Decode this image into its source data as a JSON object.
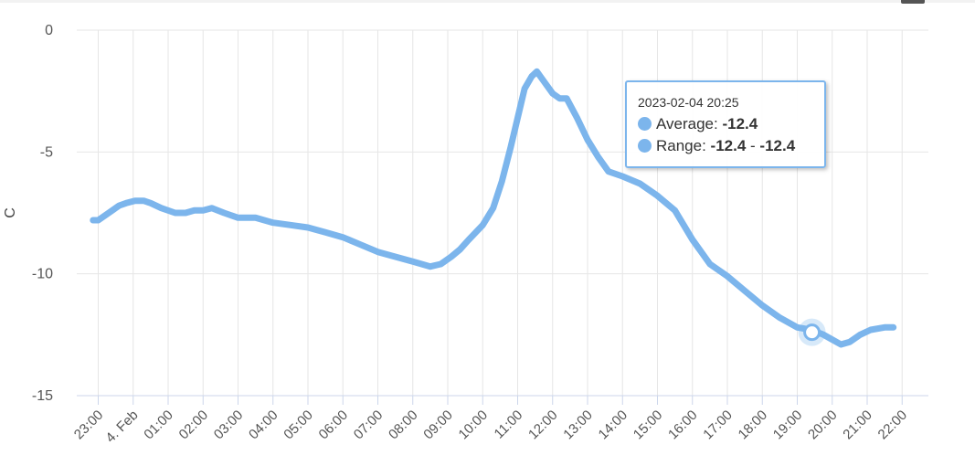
{
  "chart_data": {
    "type": "line",
    "ylabel": "C",
    "ylim": [
      -15,
      0
    ],
    "y_ticks": [
      "0",
      "-5",
      "-10",
      "-15"
    ],
    "x_ticks": [
      "23:00",
      "4. Feb",
      "01:00",
      "02:00",
      "03:00",
      "04:00",
      "05:00",
      "06:00",
      "07:00",
      "08:00",
      "09:00",
      "10:00",
      "11:00",
      "12:00",
      "13:00",
      "14:00",
      "15:00",
      "16:00",
      "17:00",
      "18:00",
      "19:00",
      "20:00",
      "21:00",
      "22:00"
    ],
    "x_unit": "hours from 2023-02-03 23:00",
    "grid": true,
    "series": [
      {
        "color": "#7cb5ec",
        "points": [
          [
            -0.15,
            -7.8
          ],
          [
            0.0,
            -7.8
          ],
          [
            0.3,
            -7.5
          ],
          [
            0.6,
            -7.2
          ],
          [
            0.8,
            -7.1
          ],
          [
            1.05,
            -7.0
          ],
          [
            1.3,
            -7.0
          ],
          [
            1.5,
            -7.1
          ],
          [
            1.8,
            -7.3
          ],
          [
            2.2,
            -7.5
          ],
          [
            2.5,
            -7.5
          ],
          [
            2.75,
            -7.4
          ],
          [
            3.0,
            -7.4
          ],
          [
            3.25,
            -7.3
          ],
          [
            3.6,
            -7.5
          ],
          [
            4.0,
            -7.7
          ],
          [
            4.5,
            -7.7
          ],
          [
            5.0,
            -7.9
          ],
          [
            5.5,
            -8.0
          ],
          [
            6.0,
            -8.1
          ],
          [
            6.5,
            -8.3
          ],
          [
            7.0,
            -8.5
          ],
          [
            7.5,
            -8.8
          ],
          [
            8.0,
            -9.1
          ],
          [
            8.5,
            -9.3
          ],
          [
            9.0,
            -9.5
          ],
          [
            9.5,
            -9.7
          ],
          [
            9.8,
            -9.6
          ],
          [
            10.1,
            -9.3
          ],
          [
            10.35,
            -9.0
          ],
          [
            10.6,
            -8.6
          ],
          [
            11.0,
            -8.0
          ],
          [
            11.3,
            -7.3
          ],
          [
            11.55,
            -6.2
          ],
          [
            11.8,
            -4.8
          ],
          [
            12.0,
            -3.6
          ],
          [
            12.2,
            -2.4
          ],
          [
            12.4,
            -1.9
          ],
          [
            12.55,
            -1.7
          ],
          [
            12.75,
            -2.1
          ],
          [
            13.0,
            -2.6
          ],
          [
            13.2,
            -2.8
          ],
          [
            13.4,
            -2.8
          ],
          [
            13.7,
            -3.6
          ],
          [
            14.0,
            -4.5
          ],
          [
            14.3,
            -5.2
          ],
          [
            14.6,
            -5.8
          ],
          [
            15.0,
            -6.0
          ],
          [
            15.5,
            -6.3
          ],
          [
            16.0,
            -6.8
          ],
          [
            16.5,
            -7.4
          ],
          [
            17.0,
            -8.6
          ],
          [
            17.5,
            -9.6
          ],
          [
            18.0,
            -10.1
          ],
          [
            18.5,
            -10.7
          ],
          [
            19.0,
            -11.3
          ],
          [
            19.5,
            -11.8
          ],
          [
            20.0,
            -12.2
          ],
          [
            20.4,
            -12.3
          ],
          [
            20.75,
            -12.5
          ],
          [
            21.0,
            -12.7
          ],
          [
            21.25,
            -12.9
          ],
          [
            21.5,
            -12.8
          ],
          [
            21.8,
            -12.5
          ],
          [
            22.1,
            -12.3
          ],
          [
            22.5,
            -12.2
          ],
          [
            22.75,
            -12.2
          ]
        ]
      }
    ],
    "highlight_point": [
      20.42,
      -12.4
    ],
    "tooltip": {
      "date": "2023-02-04 20:25",
      "average_label": "Average: ",
      "average_value": "-12.4",
      "range_label": "Range: ",
      "range_low": "-12.4",
      "range_sep": " - ",
      "range_high": "-12.4"
    }
  }
}
